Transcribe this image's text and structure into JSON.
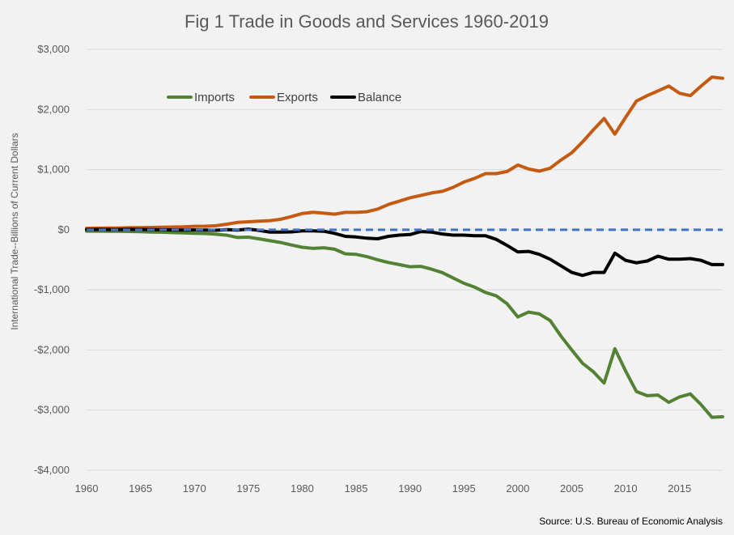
{
  "chart_data": {
    "type": "line",
    "title": "Fig 1 Trade in Goods and Services 1960-2019",
    "ylabel": "International Trade--Billions of Current Dollars",
    "xlabel": "",
    "source": "Source: U.S. Bureau of Economic Analysis",
    "xlim": [
      1960,
      2019
    ],
    "ylim": [
      -4000,
      3000
    ],
    "x_ticks": [
      1960,
      1965,
      1970,
      1975,
      1980,
      1985,
      1990,
      1995,
      2000,
      2005,
      2010,
      2015
    ],
    "x_tick_labels": [
      "1960",
      "1965",
      "1970",
      "1975",
      "1980",
      "1985",
      "1990",
      "1995",
      "2000",
      "2005",
      "2010",
      "2015"
    ],
    "y_ticks": [
      3000,
      2000,
      1000,
      0,
      -1000,
      -2000,
      -3000,
      -4000
    ],
    "y_tick_labels": [
      "$3,000",
      "$2,000",
      "$1,000",
      "$0",
      "-$1,000",
      "-$2,000",
      "-$3,000",
      "-$4,000"
    ],
    "grid": "horizontal",
    "legend_position": "top-left",
    "zero_line_color": "#4472c4",
    "x": [
      1960,
      1961,
      1962,
      1963,
      1964,
      1965,
      1966,
      1967,
      1968,
      1969,
      1970,
      1971,
      1972,
      1973,
      1974,
      1975,
      1976,
      1977,
      1978,
      1979,
      1980,
      1981,
      1982,
      1983,
      1984,
      1985,
      1986,
      1987,
      1988,
      1989,
      1990,
      1991,
      1992,
      1993,
      1994,
      1995,
      1996,
      1997,
      1998,
      1999,
      2000,
      2001,
      2002,
      2003,
      2004,
      2005,
      2006,
      2007,
      2008,
      2009,
      2010,
      2011,
      2012,
      2013,
      2014,
      2015,
      2016,
      2017,
      2018,
      2019
    ],
    "series": [
      {
        "name": "Imports",
        "color": "#548235",
        "values": [
          -23,
          -23,
          -25,
          -26,
          -29,
          -32,
          -38,
          -41,
          -48,
          -53,
          -60,
          -63,
          -74,
          -91,
          -128,
          -123,
          -151,
          -182,
          -212,
          -253,
          -291,
          -310,
          -299,
          -324,
          -400,
          -410,
          -448,
          -500,
          -545,
          -580,
          -616,
          -609,
          -656,
          -713,
          -802,
          -890,
          -955,
          -1042,
          -1099,
          -1231,
          -1450,
          -1370,
          -1400,
          -1510,
          -1770,
          -2000,
          -2220,
          -2360,
          -2550,
          -1980,
          -2350,
          -2690,
          -2760,
          -2750,
          -2870,
          -2780,
          -2730,
          -2910,
          -3120,
          -3110
        ]
      },
      {
        "name": "Exports",
        "color": "#c55a11",
        "values": [
          25,
          27,
          28,
          29,
          34,
          36,
          39,
          41,
          45,
          49,
          57,
          59,
          67,
          92,
          122,
          133,
          143,
          152,
          175,
          219,
          270,
          290,
          276,
          259,
          289,
          289,
          299,
          344,
          421,
          474,
          531,
          571,
          612,
          639,
          705,
          794,
          856,
          934,
          933,
          968,
          1076,
          1010,
          976,
          1024,
          1160,
          1280,
          1460,
          1660,
          1850,
          1590,
          1870,
          2140,
          2230,
          2310,
          2390,
          2270,
          2230,
          2390,
          2540,
          2520
        ]
      },
      {
        "name": "Balance",
        "color": "#000000",
        "values": [
          3,
          5,
          3,
          4,
          7,
          5,
          2,
          0,
          -3,
          -4,
          -3,
          -4,
          -8,
          1,
          -6,
          10,
          -10,
          -40,
          -40,
          -35,
          -20,
          -20,
          -25,
          -60,
          -110,
          -120,
          -140,
          -150,
          -110,
          -90,
          -80,
          -30,
          -40,
          -70,
          -90,
          -90,
          -100,
          -100,
          -160,
          -260,
          -370,
          -360,
          -410,
          -490,
          -600,
          -710,
          -760,
          -710,
          -710,
          -390,
          -510,
          -550,
          -520,
          -440,
          -490,
          -490,
          -480,
          -510,
          -580,
          -580
        ]
      }
    ]
  }
}
